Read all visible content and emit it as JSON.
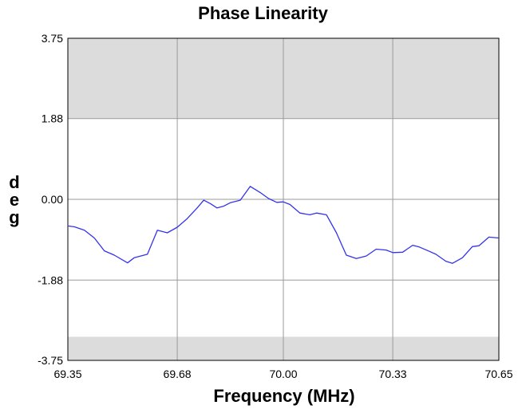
{
  "chart_data": {
    "type": "line",
    "title": "Phase Linearity",
    "xlabel": "Frequency (MHz)",
    "ylabel": "deg",
    "xlim": [
      69.35,
      70.65
    ],
    "ylim": [
      -3.75,
      3.75
    ],
    "x_ticks": [
      "69.35",
      "69.68",
      "70.00",
      "70.33",
      "70.65"
    ],
    "y_ticks": [
      "3.75",
      "1.88",
      "0.00",
      "-1.88",
      "-3.75"
    ],
    "grid": true,
    "shaded_bands": [
      {
        "from": 1.88,
        "to": 3.75,
        "color": "#dcdcdc"
      },
      {
        "from": -3.75,
        "to": -3.2,
        "color": "#dcdcdc"
      }
    ],
    "line_color": "#3333ee",
    "series": [
      {
        "x": [
          69.35,
          69.37,
          69.4,
          69.43,
          69.46,
          69.49,
          69.53,
          69.55,
          69.59,
          69.62,
          69.65,
          69.68,
          69.71,
          69.74,
          69.76,
          69.78,
          69.8,
          69.82,
          69.84,
          69.87,
          69.9,
          69.93,
          69.955,
          69.98,
          70.0,
          70.02,
          70.05,
          70.08,
          70.1,
          70.13,
          70.16,
          70.19,
          70.22,
          70.25,
          70.28,
          70.31,
          70.33,
          70.36,
          70.39,
          70.41,
          70.44,
          70.46,
          70.49,
          70.51,
          70.54,
          70.57,
          70.59,
          70.62,
          70.65
        ],
        "y": [
          -0.62,
          -0.64,
          -0.72,
          -0.9,
          -1.2,
          -1.3,
          -1.48,
          -1.36,
          -1.28,
          -0.72,
          -0.78,
          -0.65,
          -0.45,
          -0.2,
          -0.02,
          -0.1,
          -0.2,
          -0.16,
          -0.08,
          -0.02,
          0.3,
          0.16,
          0.02,
          -0.07,
          -0.06,
          -0.12,
          -0.32,
          -0.36,
          -0.32,
          -0.36,
          -0.78,
          -1.3,
          -1.38,
          -1.32,
          -1.16,
          -1.18,
          -1.24,
          -1.23,
          -1.07,
          -1.11,
          -1.21,
          -1.28,
          -1.44,
          -1.49,
          -1.36,
          -1.1,
          -1.08,
          -0.88,
          -0.9
        ]
      }
    ]
  }
}
